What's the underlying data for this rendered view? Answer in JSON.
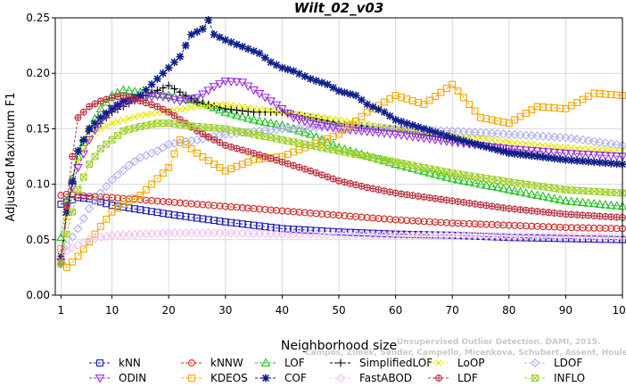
{
  "chart_data": {
    "type": "line",
    "title": "Wilt_02_v03",
    "xlabel": "Neighborhood size",
    "ylabel": "Adjusted Maximum F1",
    "xlim": [
      0,
      100
    ],
    "ylim": [
      0,
      0.25
    ],
    "xticks": [
      1,
      10,
      20,
      30,
      40,
      50,
      60,
      70,
      80,
      90,
      100
    ],
    "yticks": [
      0.0,
      0.05,
      0.1,
      0.15,
      0.2,
      0.25
    ],
    "ytick_labels": [
      "0.00",
      "0.05",
      "0.10",
      "0.15",
      "0.20",
      "0.25"
    ],
    "grid": true,
    "legend": "bottom",
    "series": [
      {
        "name": "kNN",
        "color": "#1a1ab8",
        "marker": "square",
        "x": [
          1,
          2,
          4,
          6,
          8,
          10,
          15,
          20,
          30,
          40,
          50,
          60,
          70,
          80,
          90,
          100
        ],
        "values": [
          0.082,
          0.084,
          0.088,
          0.087,
          0.084,
          0.081,
          0.077,
          0.073,
          0.066,
          0.06,
          0.057,
          0.055,
          0.054,
          0.052,
          0.051,
          0.05
        ]
      },
      {
        "name": "kNNW",
        "color": "#d42020",
        "marker": "circle",
        "x": [
          1,
          2,
          4,
          6,
          10,
          15,
          20,
          30,
          40,
          50,
          60,
          70,
          80,
          90,
          100
        ],
        "values": [
          0.09,
          0.091,
          0.09,
          0.089,
          0.088,
          0.086,
          0.084,
          0.08,
          0.076,
          0.072,
          0.068,
          0.065,
          0.063,
          0.061,
          0.06
        ]
      },
      {
        "name": "LOF",
        "color": "#22c222",
        "marker": "triangle-up",
        "x": [
          1,
          2,
          4,
          6,
          8,
          10,
          12,
          15,
          20,
          25,
          30,
          35,
          40,
          45,
          50,
          60,
          70,
          80,
          90,
          100
        ],
        "values": [
          0.052,
          0.085,
          0.125,
          0.15,
          0.168,
          0.18,
          0.185,
          0.183,
          0.18,
          0.175,
          0.165,
          0.158,
          0.153,
          0.145,
          0.133,
          0.118,
          0.105,
          0.095,
          0.085,
          0.08
        ]
      },
      {
        "name": "SimplifiedLOF",
        "color": "#000000",
        "marker": "plus",
        "x": [
          1,
          2,
          4,
          6,
          8,
          10,
          15,
          20,
          25,
          30,
          35,
          40,
          45,
          50,
          55,
          60,
          70,
          80,
          90,
          100
        ],
        "values": [
          0.028,
          0.072,
          0.13,
          0.148,
          0.155,
          0.165,
          0.178,
          0.189,
          0.174,
          0.168,
          0.165,
          0.165,
          0.16,
          0.155,
          0.152,
          0.15,
          0.14,
          0.13,
          0.122,
          0.118
        ]
      },
      {
        "name": "LoOP",
        "color": "#e6e600",
        "marker": "x",
        "x": [
          1,
          2,
          4,
          6,
          8,
          10,
          15,
          20,
          25,
          30,
          40,
          50,
          60,
          70,
          80,
          90,
          100
        ],
        "values": [
          0.03,
          0.07,
          0.12,
          0.142,
          0.15,
          0.155,
          0.162,
          0.166,
          0.17,
          0.172,
          0.165,
          0.158,
          0.15,
          0.145,
          0.138,
          0.133,
          0.13
        ]
      },
      {
        "name": "LDOF",
        "color": "#b0b0ee",
        "marker": "diamond",
        "x": [
          1,
          2,
          4,
          6,
          8,
          10,
          13,
          15,
          18,
          20,
          25,
          30,
          40,
          50,
          60,
          70,
          80,
          90,
          100
        ],
        "values": [
          0.028,
          0.045,
          0.06,
          0.078,
          0.092,
          0.104,
          0.117,
          0.124,
          0.13,
          0.136,
          0.14,
          0.145,
          0.15,
          0.152,
          0.15,
          0.148,
          0.145,
          0.142,
          0.135
        ]
      },
      {
        "name": "ODIN",
        "color": "#9a2ee0",
        "marker": "triangle-down",
        "x": [
          1,
          2,
          4,
          6,
          8,
          10,
          13,
          15,
          18,
          20,
          22,
          25,
          28,
          30,
          33,
          35,
          38,
          40,
          42,
          45,
          50,
          60,
          70,
          80,
          90,
          100
        ],
        "values": [
          0.03,
          0.08,
          0.115,
          0.14,
          0.158,
          0.168,
          0.175,
          0.177,
          0.18,
          0.178,
          0.175,
          0.178,
          0.188,
          0.193,
          0.192,
          0.185,
          0.175,
          0.168,
          0.16,
          0.155,
          0.15,
          0.145,
          0.138,
          0.132,
          0.128,
          0.125
        ]
      },
      {
        "name": "KDEOS",
        "color": "#f2a600",
        "marker": "square",
        "x": [
          1,
          2,
          4,
          6,
          8,
          10,
          12,
          15,
          17,
          20,
          22,
          25,
          28,
          30,
          35,
          40,
          45,
          50,
          55,
          60,
          65,
          70,
          75,
          80,
          85,
          90,
          95,
          100
        ],
        "values": [
          0.042,
          0.025,
          0.035,
          0.048,
          0.062,
          0.075,
          0.082,
          0.09,
          0.1,
          0.115,
          0.14,
          0.128,
          0.118,
          0.112,
          0.122,
          0.125,
          0.135,
          0.145,
          0.165,
          0.18,
          0.172,
          0.19,
          0.16,
          0.155,
          0.17,
          0.168,
          0.182,
          0.18
        ]
      },
      {
        "name": "COF",
        "color": "#0f1f8a",
        "marker": "star",
        "x": [
          1,
          2,
          4,
          6,
          8,
          10,
          12,
          15,
          18,
          20,
          22,
          24,
          26,
          27,
          28,
          30,
          32,
          34,
          36,
          38,
          40,
          42,
          45,
          48,
          50,
          53,
          55,
          58,
          60,
          65,
          70,
          75,
          80,
          85,
          90,
          95,
          100
        ],
        "values": [
          0.035,
          0.075,
          0.13,
          0.15,
          0.16,
          0.168,
          0.175,
          0.18,
          0.195,
          0.205,
          0.215,
          0.235,
          0.24,
          0.248,
          0.235,
          0.23,
          0.226,
          0.222,
          0.218,
          0.21,
          0.205,
          0.202,
          0.195,
          0.19,
          0.184,
          0.18,
          0.172,
          0.165,
          0.158,
          0.15,
          0.142,
          0.135,
          0.128,
          0.125,
          0.122,
          0.12,
          0.118
        ]
      },
      {
        "name": "FastABOD",
        "color": "#f4c0f0",
        "marker": "diamond",
        "x": [
          1,
          2,
          4,
          6,
          8,
          10,
          15,
          20,
          25,
          30,
          40,
          50,
          60,
          70,
          80,
          90,
          100
        ],
        "values": [
          0.035,
          0.04,
          0.045,
          0.05,
          0.052,
          0.054,
          0.055,
          0.056,
          0.056,
          0.056,
          0.055,
          0.055,
          0.054,
          0.054,
          0.053,
          0.053,
          0.052
        ]
      },
      {
        "name": "LDF",
        "color": "#b83040",
        "marker": "circle-plus",
        "x": [
          1,
          2,
          3,
          4,
          6,
          8,
          10,
          12,
          15,
          18,
          20,
          23,
          25,
          28,
          30,
          35,
          40,
          45,
          50,
          55,
          60,
          70,
          80,
          90,
          100
        ],
        "values": [
          0.03,
          0.08,
          0.125,
          0.16,
          0.17,
          0.175,
          0.178,
          0.18,
          0.175,
          0.17,
          0.165,
          0.155,
          0.148,
          0.14,
          0.135,
          0.128,
          0.12,
          0.112,
          0.103,
          0.097,
          0.092,
          0.085,
          0.078,
          0.073,
          0.07
        ]
      },
      {
        "name": "INFLO",
        "color": "#a0d02a",
        "marker": "x-square",
        "x": [
          1,
          2,
          4,
          6,
          8,
          10,
          12,
          15,
          18,
          20,
          25,
          30,
          35,
          40,
          45,
          50,
          60,
          70,
          80,
          90,
          100
        ],
        "values": [
          0.028,
          0.055,
          0.095,
          0.118,
          0.132,
          0.14,
          0.148,
          0.152,
          0.155,
          0.155,
          0.152,
          0.15,
          0.145,
          0.14,
          0.135,
          0.13,
          0.12,
          0.11,
          0.102,
          0.095,
          0.092
        ]
      }
    ]
  },
  "credit": {
    "line1": "Unsupervised Outlier Detection. DAMI, 2015.",
    "line2": "Campos, Zimek, Sander, Campello, Micenkova, Schubert, Assent, Houle"
  }
}
